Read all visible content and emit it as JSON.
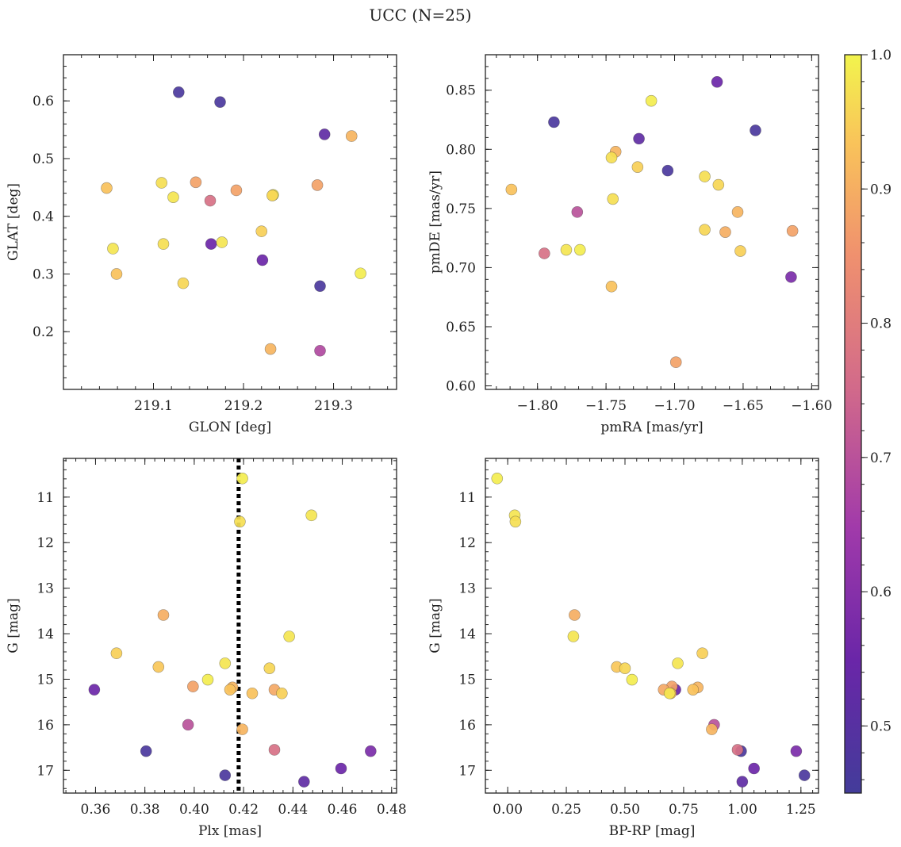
{
  "figure": {
    "title": "UCC (N=25)"
  },
  "chart_data": [
    {
      "type": "scatter",
      "id": "glon_glat",
      "xlabel": "GLON [deg]",
      "ylabel": "GLAT [deg]",
      "xlim": [
        219.0,
        219.37
      ],
      "ylim": [
        0.1,
        0.68
      ],
      "xticks": [
        219.1,
        219.2,
        219.3
      ],
      "yticks": [
        0.2,
        0.3,
        0.4,
        0.5,
        0.6
      ],
      "xticklabels": [
        "219.1",
        "219.2",
        "219.3"
      ],
      "yticklabels": [
        "0.2",
        "0.3",
        "0.4",
        "0.5",
        "0.6"
      ],
      "points": [
        {
          "x": 219.128,
          "y": 0.615,
          "c": 0.47
        },
        {
          "x": 219.174,
          "y": 0.598,
          "c": 0.47
        },
        {
          "x": 219.29,
          "y": 0.542,
          "c": 0.52
        },
        {
          "x": 219.32,
          "y": 0.539,
          "c": 0.91
        },
        {
          "x": 219.048,
          "y": 0.449,
          "c": 0.93
        },
        {
          "x": 219.109,
          "y": 0.458,
          "c": 0.97
        },
        {
          "x": 219.147,
          "y": 0.459,
          "c": 0.88
        },
        {
          "x": 219.122,
          "y": 0.433,
          "c": 0.98
        },
        {
          "x": 219.163,
          "y": 0.427,
          "c": 0.77
        },
        {
          "x": 219.192,
          "y": 0.445,
          "c": 0.88
        },
        {
          "x": 219.233,
          "y": 0.437,
          "c": 0.99
        },
        {
          "x": 219.232,
          "y": 0.436,
          "c": 0.96
        },
        {
          "x": 219.282,
          "y": 0.454,
          "c": 0.88
        },
        {
          "x": 219.055,
          "y": 0.344,
          "c": 0.98
        },
        {
          "x": 219.111,
          "y": 0.352,
          "c": 0.97
        },
        {
          "x": 219.164,
          "y": 0.352,
          "c": 0.55
        },
        {
          "x": 219.176,
          "y": 0.355,
          "c": 0.98
        },
        {
          "x": 219.22,
          "y": 0.374,
          "c": 0.95
        },
        {
          "x": 219.059,
          "y": 0.3,
          "c": 0.93
        },
        {
          "x": 219.133,
          "y": 0.284,
          "c": 0.96
        },
        {
          "x": 219.221,
          "y": 0.324,
          "c": 0.55
        },
        {
          "x": 219.285,
          "y": 0.279,
          "c": 0.47
        },
        {
          "x": 219.33,
          "y": 0.301,
          "c": 0.99
        },
        {
          "x": 219.23,
          "y": 0.17,
          "c": 0.91
        },
        {
          "x": 219.285,
          "y": 0.167,
          "c": 0.68
        }
      ]
    },
    {
      "type": "scatter",
      "id": "pmra_pmde",
      "xlabel": "pmRA [mas/yr]",
      "ylabel": "pmDE [mas/yr]",
      "xlim": [
        -1.838,
        -1.595
      ],
      "ylim": [
        0.597,
        0.88
      ],
      "xticks": [
        -1.8,
        -1.75,
        -1.7,
        -1.65,
        -1.6
      ],
      "yticks": [
        0.6,
        0.65,
        0.7,
        0.75,
        0.8,
        0.85
      ],
      "xticklabels": [
        "−1.80",
        "−1.75",
        "−1.70",
        "−1.65",
        "−1.60"
      ],
      "yticklabels": [
        "0.60",
        "0.65",
        "0.70",
        "0.75",
        "0.80",
        "0.85"
      ],
      "points": [
        {
          "x": -1.669,
          "y": 0.857,
          "c": 0.55
        },
        {
          "x": -1.788,
          "y": 0.823,
          "c": 0.47
        },
        {
          "x": -1.717,
          "y": 0.841,
          "c": 0.99
        },
        {
          "x": -1.641,
          "y": 0.816,
          "c": 0.47
        },
        {
          "x": -1.726,
          "y": 0.809,
          "c": 0.52
        },
        {
          "x": -1.743,
          "y": 0.798,
          "c": 0.91
        },
        {
          "x": -1.746,
          "y": 0.793,
          "c": 0.97
        },
        {
          "x": -1.727,
          "y": 0.785,
          "c": 0.95
        },
        {
          "x": -1.705,
          "y": 0.782,
          "c": 0.47
        },
        {
          "x": -1.678,
          "y": 0.777,
          "c": 0.97
        },
        {
          "x": -1.668,
          "y": 0.77,
          "c": 0.96
        },
        {
          "x": -1.819,
          "y": 0.766,
          "c": 0.93
        },
        {
          "x": -1.745,
          "y": 0.758,
          "c": 0.97
        },
        {
          "x": -1.771,
          "y": 0.747,
          "c": 0.7
        },
        {
          "x": -1.654,
          "y": 0.747,
          "c": 0.91
        },
        {
          "x": -1.678,
          "y": 0.732,
          "c": 0.96
        },
        {
          "x": -1.663,
          "y": 0.73,
          "c": 0.9
        },
        {
          "x": -1.614,
          "y": 0.731,
          "c": 0.88
        },
        {
          "x": -1.795,
          "y": 0.712,
          "c": 0.77
        },
        {
          "x": -1.779,
          "y": 0.715,
          "c": 0.98
        },
        {
          "x": -1.769,
          "y": 0.715,
          "c": 0.99
        },
        {
          "x": -1.652,
          "y": 0.714,
          "c": 0.95
        },
        {
          "x": -1.615,
          "y": 0.692,
          "c": 0.58
        },
        {
          "x": -1.746,
          "y": 0.684,
          "c": 0.93
        },
        {
          "x": -1.699,
          "y": 0.62,
          "c": 0.88
        }
      ]
    },
    {
      "type": "scatter",
      "id": "plx_g",
      "xlabel": "Plx [mas]",
      "ylabel": "G [mag]",
      "xlim": [
        0.347,
        0.482
      ],
      "ylim": [
        17.5,
        10.15
      ],
      "xticks": [
        0.36,
        0.38,
        0.4,
        0.42,
        0.44,
        0.46,
        0.48
      ],
      "yticks": [
        11,
        12,
        13,
        14,
        15,
        16,
        17
      ],
      "xticklabels": [
        "0.36",
        "0.38",
        "0.40",
        "0.42",
        "0.44",
        "0.46",
        "0.48"
      ],
      "yticklabels": [
        "11",
        "12",
        "13",
        "14",
        "15",
        "16",
        "17"
      ],
      "vline": 0.418,
      "points": [
        {
          "x": 0.4195,
          "y": 10.59,
          "c": 0.99
        },
        {
          "x": 0.4185,
          "y": 11.54,
          "c": 0.97
        },
        {
          "x": 0.4475,
          "y": 11.4,
          "c": 0.98
        },
        {
          "x": 0.3875,
          "y": 13.59,
          "c": 0.9
        },
        {
          "x": 0.4385,
          "y": 14.06,
          "c": 0.98
        },
        {
          "x": 0.3685,
          "y": 14.43,
          "c": 0.95
        },
        {
          "x": 0.4125,
          "y": 14.65,
          "c": 0.98
        },
        {
          "x": 0.3855,
          "y": 14.73,
          "c": 0.94
        },
        {
          "x": 0.4305,
          "y": 14.76,
          "c": 0.96
        },
        {
          "x": 0.4055,
          "y": 15.01,
          "c": 0.99
        },
        {
          "x": 0.3595,
          "y": 15.23,
          "c": 0.55
        },
        {
          "x": 0.3995,
          "y": 15.16,
          "c": 0.88
        },
        {
          "x": 0.4155,
          "y": 15.18,
          "c": 0.91
        },
        {
          "x": 0.4145,
          "y": 15.23,
          "c": 0.93
        },
        {
          "x": 0.4235,
          "y": 15.31,
          "c": 0.93
        },
        {
          "x": 0.4325,
          "y": 15.23,
          "c": 0.89
        },
        {
          "x": 0.4355,
          "y": 15.31,
          "c": 0.95
        },
        {
          "x": 0.3975,
          "y": 16.0,
          "c": 0.7
        },
        {
          "x": 0.4195,
          "y": 16.1,
          "c": 0.91
        },
        {
          "x": 0.3805,
          "y": 16.58,
          "c": 0.47
        },
        {
          "x": 0.4325,
          "y": 16.55,
          "c": 0.77
        },
        {
          "x": 0.4715,
          "y": 16.58,
          "c": 0.58
        },
        {
          "x": 0.4595,
          "y": 16.96,
          "c": 0.55
        },
        {
          "x": 0.4125,
          "y": 17.11,
          "c": 0.47
        },
        {
          "x": 0.4445,
          "y": 17.25,
          "c": 0.52
        }
      ]
    },
    {
      "type": "scatter",
      "id": "bprp_g",
      "xlabel": "BP-RP [mag]",
      "ylabel": "G [mag]",
      "xlim": [
        -0.095,
        1.325
      ],
      "ylim": [
        17.5,
        10.15
      ],
      "xticks": [
        0.0,
        0.25,
        0.5,
        0.75,
        1.0,
        1.25
      ],
      "yticks": [
        11,
        12,
        13,
        14,
        15,
        16,
        17
      ],
      "xticklabels": [
        "0.00",
        "0.25",
        "0.50",
        "0.75",
        "1.00",
        "1.25"
      ],
      "yticklabels": [
        "11",
        "12",
        "13",
        "14",
        "15",
        "16",
        "17"
      ],
      "points": [
        {
          "x": -0.045,
          "y": 10.59,
          "c": 0.99
        },
        {
          "x": 0.03,
          "y": 11.4,
          "c": 0.98
        },
        {
          "x": 0.033,
          "y": 11.54,
          "c": 0.97
        },
        {
          "x": 0.285,
          "y": 13.59,
          "c": 0.9
        },
        {
          "x": 0.28,
          "y": 14.06,
          "c": 0.98
        },
        {
          "x": 0.83,
          "y": 14.43,
          "c": 0.95
        },
        {
          "x": 0.725,
          "y": 14.65,
          "c": 0.98
        },
        {
          "x": 0.465,
          "y": 14.73,
          "c": 0.94
        },
        {
          "x": 0.5,
          "y": 14.76,
          "c": 0.96
        },
        {
          "x": 0.53,
          "y": 15.01,
          "c": 0.99
        },
        {
          "x": 0.715,
          "y": 15.23,
          "c": 0.55
        },
        {
          "x": 0.7,
          "y": 15.16,
          "c": 0.88
        },
        {
          "x": 0.81,
          "y": 15.18,
          "c": 0.91
        },
        {
          "x": 0.79,
          "y": 15.23,
          "c": 0.93
        },
        {
          "x": 0.665,
          "y": 15.23,
          "c": 0.89
        },
        {
          "x": 0.695,
          "y": 15.31,
          "c": 0.93
        },
        {
          "x": 0.69,
          "y": 15.31,
          "c": 0.98
        },
        {
          "x": 0.88,
          "y": 16.0,
          "c": 0.7
        },
        {
          "x": 0.87,
          "y": 16.1,
          "c": 0.91
        },
        {
          "x": 0.995,
          "y": 16.58,
          "c": 0.47
        },
        {
          "x": 0.98,
          "y": 16.55,
          "c": 0.77
        },
        {
          "x": 1.23,
          "y": 16.58,
          "c": 0.58
        },
        {
          "x": 1.05,
          "y": 16.96,
          "c": 0.55
        },
        {
          "x": 1.265,
          "y": 17.11,
          "c": 0.47
        },
        {
          "x": 1.0,
          "y": 17.25,
          "c": 0.52
        }
      ]
    }
  ],
  "colorbar": {
    "colormap": "plasma",
    "range": [
      0.45,
      1.0
    ],
    "ticks": [
      0.5,
      0.6,
      0.7,
      0.8,
      0.9,
      1.0
    ],
    "ticklabels": [
      "0.5",
      "0.6",
      "0.7",
      "0.8",
      "0.9",
      "1.0"
    ]
  },
  "vline_color": "#000000"
}
